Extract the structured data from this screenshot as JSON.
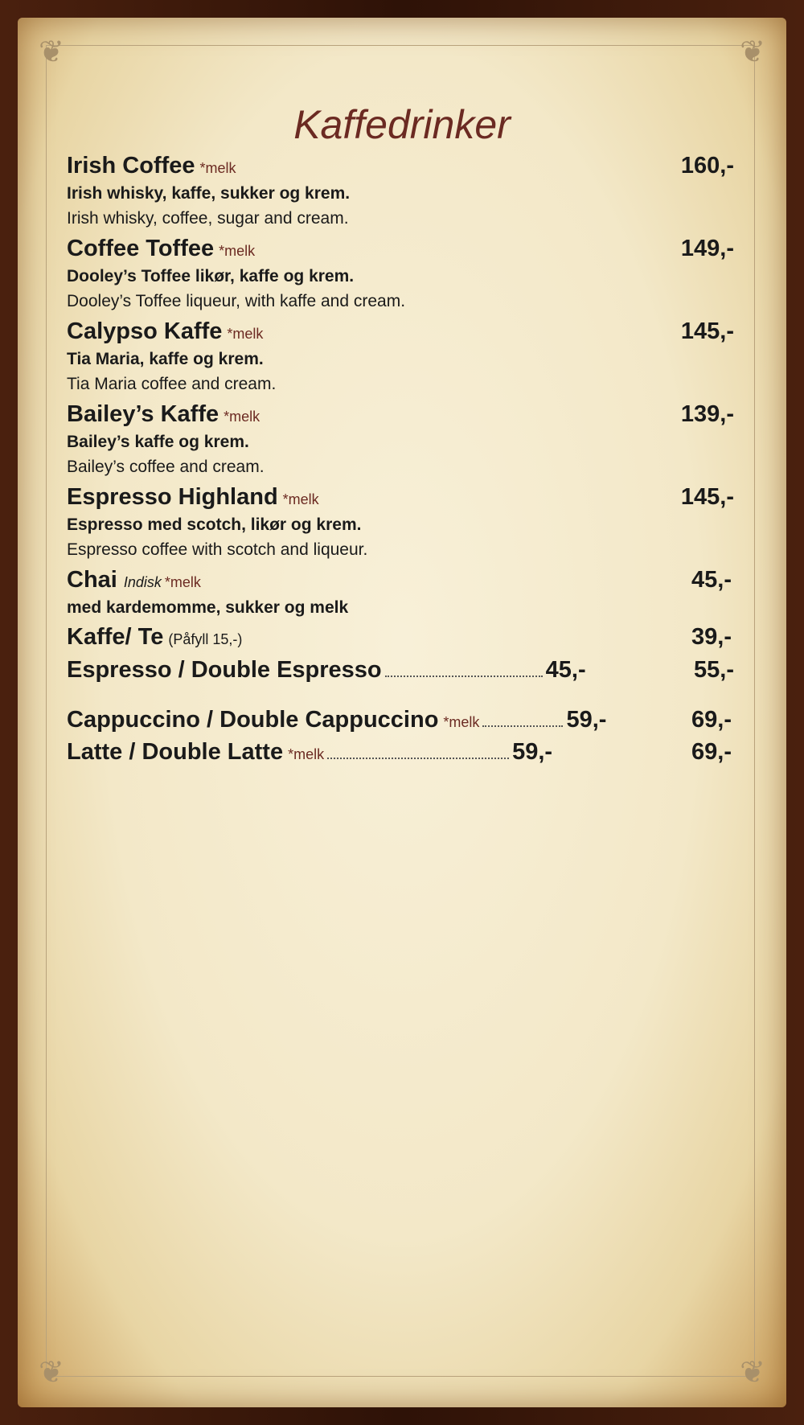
{
  "title": "Kaffedrinker",
  "items": [
    {
      "name": "Irish Coffee",
      "note": "*melk",
      "price": "160,-",
      "desc_no": "Irish whisky, kaffe, sukker og krem.",
      "desc_en": "Irish whisky, coffee, sugar and cream."
    },
    {
      "name": "Coffee Toffee",
      "note": "*melk",
      "price": "149,-",
      "desc_no": "Dooley’s Toffee likør, kaffe og krem.",
      "desc_en": "Dooley’s Toffee liqueur, with kaffe and cream."
    },
    {
      "name": "Calypso Kaffe",
      "note": "*melk",
      "price": "145,-",
      "desc_no": "Tia Maria, kaffe og krem.",
      "desc_en": "Tia Maria coffee and cream."
    },
    {
      "name": "Bailey’s Kaffe",
      "note": "*melk",
      "price": "139,-",
      "desc_no": "Bailey’s kaffe og krem.",
      "desc_en": "Bailey’s coffee and cream."
    },
    {
      "name": "Espresso Highland",
      "note": "*melk",
      "price": "145,-",
      "desc_no": "Espresso med scotch, likør og krem.",
      "desc_en": "Espresso coffee with scotch and liqueur."
    }
  ],
  "chai": {
    "name": "Chai",
    "sub": "Indisk",
    "note": "*melk",
    "price": "45,-",
    "desc": "med kardemomme, sukker og melk"
  },
  "kaffe_te": {
    "name": "Kaffe/ Te",
    "sub": "(Påfyll 15,-)",
    "price": "39,-"
  },
  "espresso": {
    "name": "Espresso / Double Espresso",
    "price_single": "45,-",
    "price_double": "55,-"
  },
  "cappuccino": {
    "name": "Cappuccino / Double Cappuccino",
    "note": "*melk",
    "price_single": "59,-",
    "price_double": "69,-"
  },
  "latte": {
    "name": "Latte / Double Latte",
    "note": "*melk",
    "price_single": "59,-",
    "price_double": "69,-"
  }
}
